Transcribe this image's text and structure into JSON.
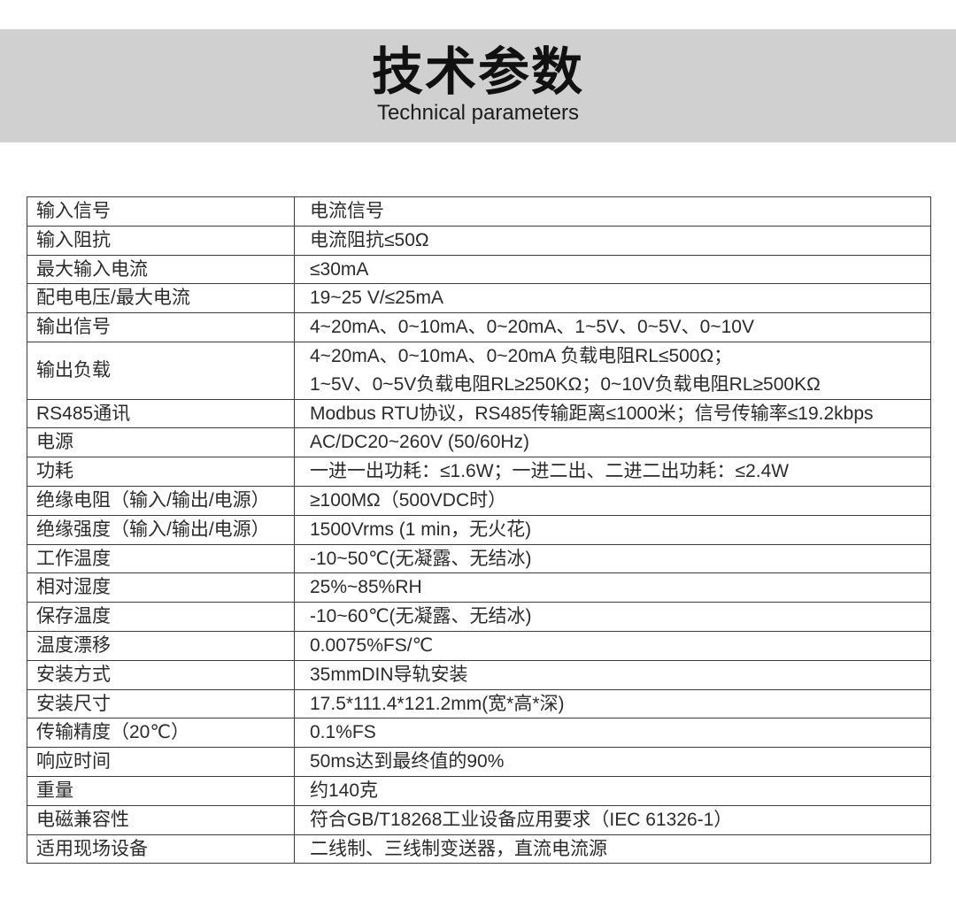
{
  "header": {
    "title": "技术参数",
    "subtitle": "Technical parameters"
  },
  "colors": {
    "band": "#d1d0d0",
    "table_border": "#3c3c3c",
    "table_text": "#2b2b2b"
  },
  "spec_table": {
    "rows": [
      {
        "label": "输入信号",
        "values": [
          "电流信号"
        ]
      },
      {
        "label": "输入阻抗",
        "values": [
          "电流阻抗≤50Ω"
        ]
      },
      {
        "label": "最大输入电流",
        "values": [
          "≤30mA"
        ]
      },
      {
        "label": "配电电压/最大电流",
        "values": [
          "19~25 V/≤25mA"
        ]
      },
      {
        "label": "输出信号",
        "values": [
          "4~20mA、0~10mA、0~20mA、1~5V、0~5V、0~10V"
        ]
      },
      {
        "label": "输出负载",
        "values": [
          "4~20mA、0~10mA、0~20mA 负载电阻RL≤500Ω；",
          "1~5V、0~5V负载电阻RL≥250KΩ；0~10V负载电阻RL≥500KΩ"
        ]
      },
      {
        "label": "RS485通讯",
        "values": [
          "Modbus RTU协议，RS485传输距离≤1000米；信号传输率≤19.2kbps"
        ]
      },
      {
        "label": "电源",
        "values": [
          "AC/DC20~260V (50/60Hz)"
        ]
      },
      {
        "label": "功耗",
        "values": [
          "一进一出功耗：≤1.6W；一进二出、二进二出功耗：≤2.4W"
        ]
      },
      {
        "label": "绝缘电阻（输入/输出/电源）",
        "values": [
          "≥100MΩ（500VDC时）"
        ]
      },
      {
        "label": "绝缘强度（输入/输出/电源）",
        "values": [
          "1500Vrms (1 min，无火花)"
        ]
      },
      {
        "label": "工作温度",
        "values": [
          "-10~50℃(无凝露、无结冰)"
        ]
      },
      {
        "label": "相对湿度",
        "values": [
          "25%~85%RH"
        ]
      },
      {
        "label": "保存温度",
        "values": [
          "-10~60℃(无凝露、无结冰)"
        ]
      },
      {
        "label": "温度漂移",
        "values": [
          "0.0075%FS/℃"
        ]
      },
      {
        "label": "安装方式",
        "values": [
          "35mmDIN导轨安装"
        ]
      },
      {
        "label": "安装尺寸",
        "values": [
          "17.5*111.4*121.2mm(宽*高*深)"
        ]
      },
      {
        "label": "传输精度（20℃）",
        "values": [
          "0.1%FS"
        ]
      },
      {
        "label": "响应时间",
        "values": [
          "50ms达到最终值的90%"
        ]
      },
      {
        "label": "重量",
        "values": [
          "约140克"
        ]
      },
      {
        "label": "电磁兼容性",
        "values": [
          "符合GB/T18268工业设备应用要求（IEC 61326-1）"
        ]
      },
      {
        "label": "适用现场设备",
        "values": [
          "二线制、三线制变送器，直流电流源"
        ]
      }
    ]
  }
}
